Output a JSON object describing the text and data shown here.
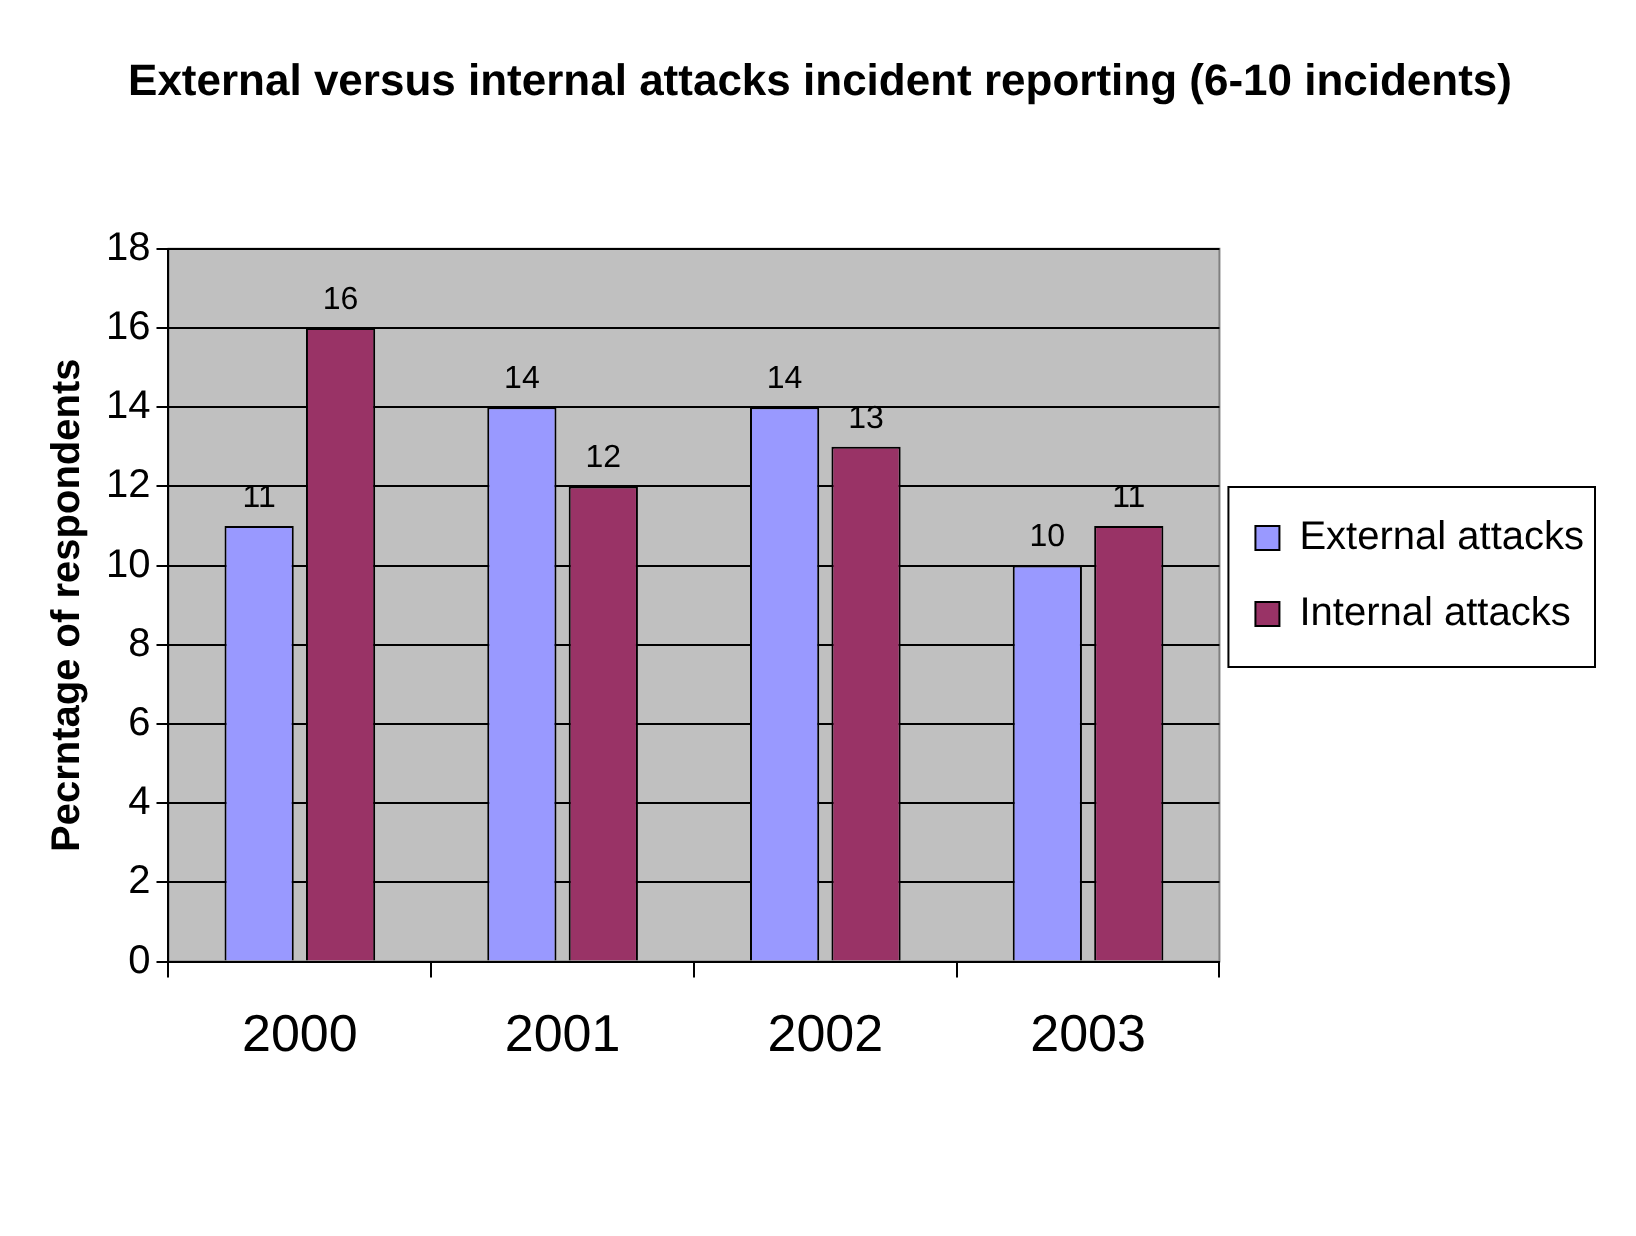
{
  "chart_data": {
    "type": "bar",
    "title": "External versus internal attacks incident reporting (6-10 incidents)",
    "ylabel": "Pecrntage of respondents",
    "categories": [
      "2000",
      "2001",
      "2002",
      "2003"
    ],
    "series": [
      {
        "name": "External attacks",
        "color": "#9999ff",
        "values": [
          11,
          14,
          14,
          10
        ]
      },
      {
        "name": "Internal attacks",
        "color": "#993366",
        "values": [
          16,
          12,
          13,
          11
        ]
      }
    ],
    "ylim": [
      0,
      18
    ],
    "yticks": [
      0,
      2,
      4,
      6,
      8,
      10,
      12,
      14,
      16,
      18
    ],
    "grid": "y",
    "legend": "right",
    "data_labels": true
  }
}
